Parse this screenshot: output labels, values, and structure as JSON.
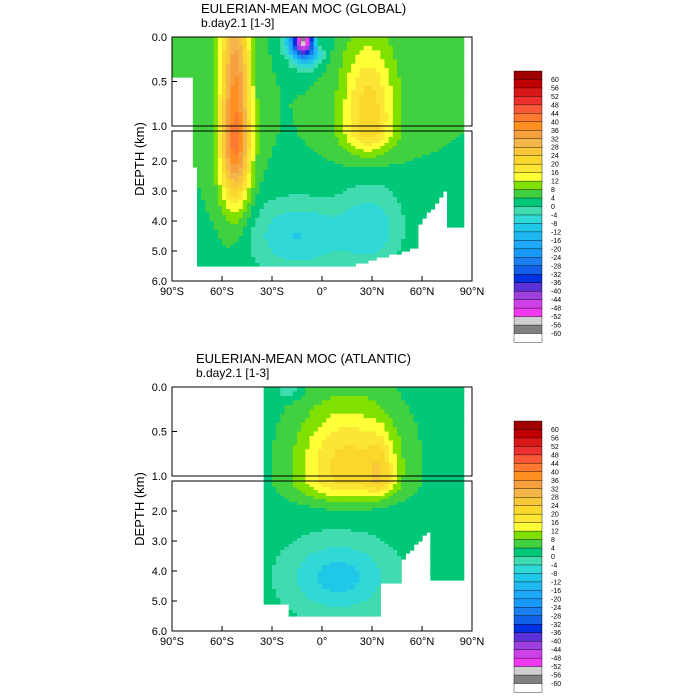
{
  "palette": {
    "levels": [
      60,
      56,
      52,
      48,
      44,
      40,
      36,
      32,
      28,
      24,
      20,
      16,
      12,
      8,
      4,
      0,
      -4,
      -8,
      -12,
      -16,
      -20,
      -24,
      -28,
      -32,
      -36,
      -40,
      -44,
      -48,
      -52,
      -56,
      -60
    ],
    "colors": [
      "#a00000",
      "#c00000",
      "#d81818",
      "#ec3030",
      "#f85838",
      "#ff7a30",
      "#ff8f20",
      "#f7a040",
      "#f4b54b",
      "#f8c73a",
      "#fbd72b",
      "#fbe636",
      "#ffff38",
      "#80e000",
      "#40d040",
      "#00c878",
      "#40dcb0",
      "#30d8d8",
      "#20c8e8",
      "#20b8f0",
      "#20a8f8",
      "#1898f8",
      "#1a80f0",
      "#1060e8",
      "#0030e0",
      "#5a30d8",
      "#9e40e0",
      "#d040e8",
      "#f038f0",
      "#d0d0d0",
      "#808080",
      "#ffffff"
    ],
    "labels": [
      "60",
      "56",
      "52",
      "48",
      "44",
      "40",
      "36",
      "32",
      "28",
      "24",
      "20",
      "16",
      "12",
      "8",
      "4",
      "0",
      "-4",
      "-8",
      "-12",
      "-16",
      "-20",
      "-24",
      "-28",
      "-32",
      "-36",
      "-40",
      "-44",
      "-48",
      "-52",
      "-56",
      "-60"
    ]
  },
  "chart_data": [
    {
      "type": "heatmap",
      "title": "EULERIAN-MEAN MOC (GLOBAL)",
      "subtitle": "b.day2.1 [1-3]",
      "ylabel": "DEPTH (km)",
      "xlabel": "",
      "x_ticks": [
        "90°S",
        "60°S",
        "30°S",
        "0°",
        "30°N",
        "60°N",
        "90°N"
      ],
      "y_ticks_upper": [
        "0.0",
        "0.5",
        "1.0"
      ],
      "y_ticks_lower": [
        "2.0",
        "3.0",
        "4.0",
        "5.0",
        "6.0"
      ],
      "xlim": [
        -90,
        90
      ],
      "ylim": [
        6.0,
        0.0
      ],
      "colorbar_levels": [
        60,
        56,
        52,
        48,
        44,
        40,
        36,
        32,
        28,
        24,
        20,
        16,
        12,
        8,
        4,
        0,
        -4,
        -8,
        -12,
        -16,
        -20,
        -24,
        -28,
        -32,
        -36,
        -40,
        -44,
        -48,
        -52,
        -56,
        -60
      ]
    },
    {
      "type": "heatmap",
      "title": "EULERIAN-MEAN MOC (ATLANTIC)",
      "subtitle": "b.day2.1 [1-3]",
      "ylabel": "DEPTH (km)",
      "xlabel": "",
      "x_ticks": [
        "90°S",
        "60°S",
        "30°S",
        "0°",
        "30°N",
        "60°N",
        "90°N"
      ],
      "y_ticks_upper": [
        "0.0",
        "0.5",
        "1.0"
      ],
      "y_ticks_lower": [
        "2.0",
        "3.0",
        "4.0",
        "5.0",
        "6.0"
      ],
      "xlim": [
        -90,
        90
      ],
      "ylim": [
        6.0,
        0.0
      ],
      "colorbar_levels": [
        60,
        56,
        52,
        48,
        44,
        40,
        36,
        32,
        28,
        24,
        20,
        16,
        12,
        8,
        4,
        0,
        -4,
        -8,
        -12,
        -16,
        -20,
        -24,
        -28,
        -32,
        -36,
        -40,
        -44,
        -48,
        -52,
        -56,
        -60
      ]
    }
  ]
}
